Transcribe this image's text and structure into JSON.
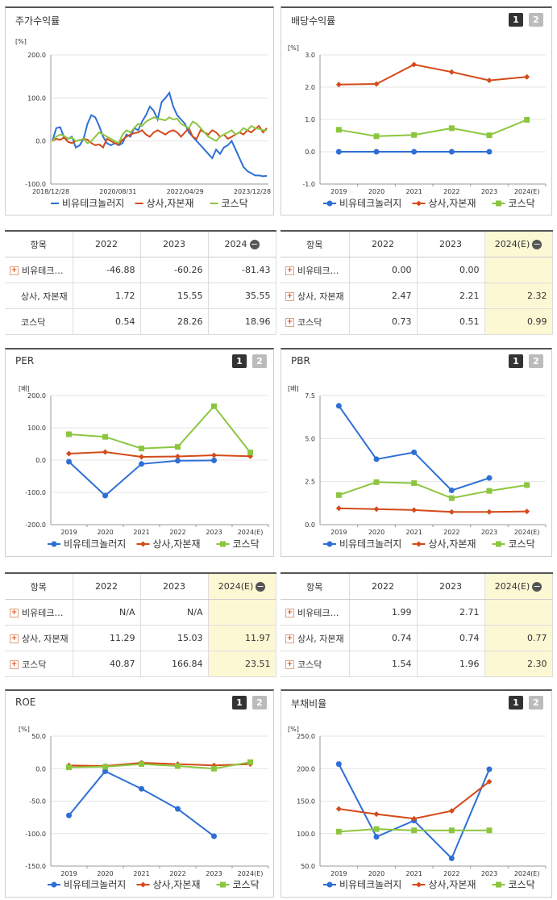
{
  "colors": {
    "s1": "#2e6fd6",
    "s2": "#d44a1a",
    "s3": "#8cc63f"
  },
  "legend": [
    "비유테크놀러지",
    "상사,자본재",
    "코스닥"
  ],
  "btn_labels": [
    "1",
    "2"
  ],
  "price_chart": {
    "title": "주가수익률",
    "unit": "[%]",
    "chart_data": {
      "type": "line",
      "y_ticks": [
        "200.0",
        "100.0",
        "0.0",
        "-100.0"
      ],
      "x_ticks": [
        "2018/12/28",
        "2020/08/31",
        "2022/04/29",
        "2023/12/28"
      ],
      "ylim": [
        -100,
        200
      ],
      "series": [
        {
          "name": "비유테크놀러지",
          "values": [
            0,
            30,
            32,
            8,
            5,
            10,
            -15,
            -10,
            5,
            40,
            60,
            55,
            35,
            10,
            -5,
            -10,
            -5,
            -10,
            -5,
            15,
            10,
            30,
            25,
            45,
            60,
            80,
            70,
            50,
            90,
            100,
            112,
            80,
            60,
            50,
            40,
            20,
            10,
            0,
            -10,
            -20,
            -30,
            -40,
            -20,
            -30,
            -15,
            -10,
            0,
            -20,
            -40,
            -60,
            -70,
            -75,
            -80,
            -80,
            -82,
            -81
          ]
        },
        {
          "name": "상사,자본재",
          "values": [
            0,
            5,
            3,
            8,
            -2,
            -5,
            0,
            2,
            5,
            3,
            -5,
            -10,
            -8,
            -15,
            5,
            0,
            -5,
            -8,
            3,
            10,
            15,
            18,
            20,
            25,
            15,
            10,
            20,
            25,
            20,
            15,
            22,
            25,
            20,
            10,
            20,
            30,
            10,
            5,
            25,
            20,
            15,
            25,
            20,
            10,
            15,
            5,
            10,
            15,
            20,
            15,
            25,
            20,
            28,
            35,
            20,
            30
          ]
        },
        {
          "name": "코스닥",
          "values": [
            0,
            10,
            15,
            12,
            5,
            8,
            0,
            2,
            5,
            -5,
            0,
            10,
            20,
            15,
            10,
            5,
            0,
            -5,
            15,
            25,
            20,
            30,
            40,
            35,
            45,
            50,
            55,
            52,
            50,
            48,
            55,
            50,
            52,
            40,
            35,
            30,
            45,
            40,
            30,
            20,
            10,
            5,
            0,
            10,
            15,
            20,
            25,
            15,
            20,
            30,
            25,
            35,
            30,
            28,
            25,
            25
          ]
        }
      ]
    }
  },
  "div_chart": {
    "title": "배당수익률",
    "unit": "[%]",
    "chart_data": {
      "type": "line",
      "categories": [
        "2019",
        "2020",
        "2021",
        "2022",
        "2023",
        "2024(E)"
      ],
      "y_ticks": [
        "3.0",
        "2.0",
        "1.0",
        "0.0",
        "-1.0"
      ],
      "ylim": [
        -1,
        3
      ],
      "series": [
        {
          "name": "비유테크놀러지",
          "values": [
            0,
            0,
            0,
            0,
            0,
            null
          ]
        },
        {
          "name": "상사,자본재",
          "values": [
            2.08,
            2.1,
            2.7,
            2.47,
            2.21,
            2.32
          ]
        },
        {
          "name": "코스닥",
          "values": [
            0.68,
            0.48,
            0.52,
            0.73,
            0.51,
            0.99
          ]
        }
      ]
    }
  },
  "per_chart": {
    "title": "PER",
    "unit": "[배]",
    "chart_data": {
      "type": "line",
      "categories": [
        "2019",
        "2020",
        "2021",
        "2022",
        "2023",
        "2024(E)"
      ],
      "y_ticks": [
        "200.0",
        "100.0",
        "0.0",
        "-100.0",
        "-200.0"
      ],
      "ylim": [
        -200,
        200
      ],
      "series": [
        {
          "name": "비유테크놀러지",
          "values": [
            -5,
            -110,
            -12,
            -2,
            -1,
            null
          ]
        },
        {
          "name": "상사,자본재",
          "values": [
            20,
            25,
            10,
            11.29,
            15.03,
            11.97
          ]
        },
        {
          "name": "코스닥",
          "values": [
            80,
            72,
            36,
            40.87,
            166.84,
            23.51
          ]
        }
      ]
    }
  },
  "pbr_chart": {
    "title": "PBR",
    "unit": "[배]",
    "chart_data": {
      "type": "line",
      "categories": [
        "2019",
        "2020",
        "2021",
        "2022",
        "2023",
        "2024(E)"
      ],
      "y_ticks": [
        "7.5",
        "5.0",
        "2.5",
        "0.0"
      ],
      "ylim": [
        0,
        7.5
      ],
      "series": [
        {
          "name": "비유테크놀러지",
          "values": [
            6.9,
            3.8,
            4.2,
            1.99,
            2.71,
            null
          ]
        },
        {
          "name": "상사,자본재",
          "values": [
            0.95,
            0.9,
            0.85,
            0.74,
            0.74,
            0.77
          ]
        },
        {
          "name": "코스닥",
          "values": [
            1.72,
            2.47,
            2.41,
            1.54,
            1.96,
            2.3
          ]
        }
      ]
    }
  },
  "roe_chart": {
    "title": "ROE",
    "unit": "[%]",
    "chart_data": {
      "type": "line",
      "categories": [
        "2019",
        "2020",
        "2021",
        "2022",
        "2023",
        "2024(E)"
      ],
      "y_ticks": [
        "50.0",
        "0.0",
        "-50.0",
        "-100.0",
        "-150.0"
      ],
      "ylim": [
        -150,
        50
      ],
      "series": [
        {
          "name": "비유테크놀러지",
          "values": [
            -72,
            -4,
            -31,
            -62,
            -104,
            null
          ]
        },
        {
          "name": "상사,자본재",
          "values": [
            5,
            4,
            9,
            7,
            5,
            7
          ]
        },
        {
          "name": "코스닥",
          "values": [
            2,
            3,
            7,
            4,
            0,
            10
          ]
        }
      ]
    }
  },
  "debt_chart": {
    "title": "부채비율",
    "unit": "[%]",
    "chart_data": {
      "type": "line",
      "categories": [
        "2019",
        "2020",
        "2021",
        "2022",
        "2023",
        "2024(E)"
      ],
      "y_ticks": [
        "250.0",
        "200.0",
        "150.0",
        "100.0",
        "50.0"
      ],
      "ylim": [
        50,
        250
      ],
      "series": [
        {
          "name": "비유테크놀러지",
          "values": [
            207,
            95,
            120,
            62,
            199,
            null
          ]
        },
        {
          "name": "상사,자본재",
          "values": [
            138,
            130,
            123,
            135,
            180,
            null
          ]
        },
        {
          "name": "코스닥",
          "values": [
            103,
            107,
            105,
            105,
            105,
            null
          ]
        }
      ]
    }
  },
  "tables": {
    "price": {
      "head": [
        "항목",
        "2022",
        "2023",
        "2024"
      ],
      "rows": [
        {
          "name": "비유테크…",
          "v": [
            "-46.88",
            "-60.26",
            "-81.43"
          ]
        },
        {
          "name": "상사, 자본재",
          "v": [
            "1.72",
            "15.55",
            "35.55"
          ]
        },
        {
          "name": "코스닥",
          "v": [
            "0.54",
            "28.26",
            "18.96"
          ]
        }
      ]
    },
    "div": {
      "head": [
        "항목",
        "2022",
        "2023",
        "2024(E)"
      ],
      "rows": [
        {
          "name": "비유테크…",
          "v": [
            "0.00",
            "0.00",
            ""
          ]
        },
        {
          "name": "상사, 자본재",
          "v": [
            "2.47",
            "2.21",
            "2.32"
          ]
        },
        {
          "name": "코스닥",
          "v": [
            "0.73",
            "0.51",
            "0.99"
          ]
        }
      ]
    },
    "per": {
      "head": [
        "항목",
        "2022",
        "2023",
        "2024(E)"
      ],
      "rows": [
        {
          "name": "비유테크…",
          "v": [
            "N/A",
            "N/A",
            ""
          ]
        },
        {
          "name": "상사, 자본재",
          "v": [
            "11.29",
            "15.03",
            "11.97"
          ]
        },
        {
          "name": "코스닥",
          "v": [
            "40.87",
            "166.84",
            "23.51"
          ]
        }
      ]
    },
    "pbr": {
      "head": [
        "항목",
        "2022",
        "2023",
        "2024(E)"
      ],
      "rows": [
        {
          "name": "비유테크…",
          "v": [
            "1.99",
            "2.71",
            ""
          ]
        },
        {
          "name": "상사, 자본재",
          "v": [
            "0.74",
            "0.74",
            "0.77"
          ]
        },
        {
          "name": "코스닥",
          "v": [
            "1.54",
            "1.96",
            "2.30"
          ]
        }
      ]
    }
  }
}
